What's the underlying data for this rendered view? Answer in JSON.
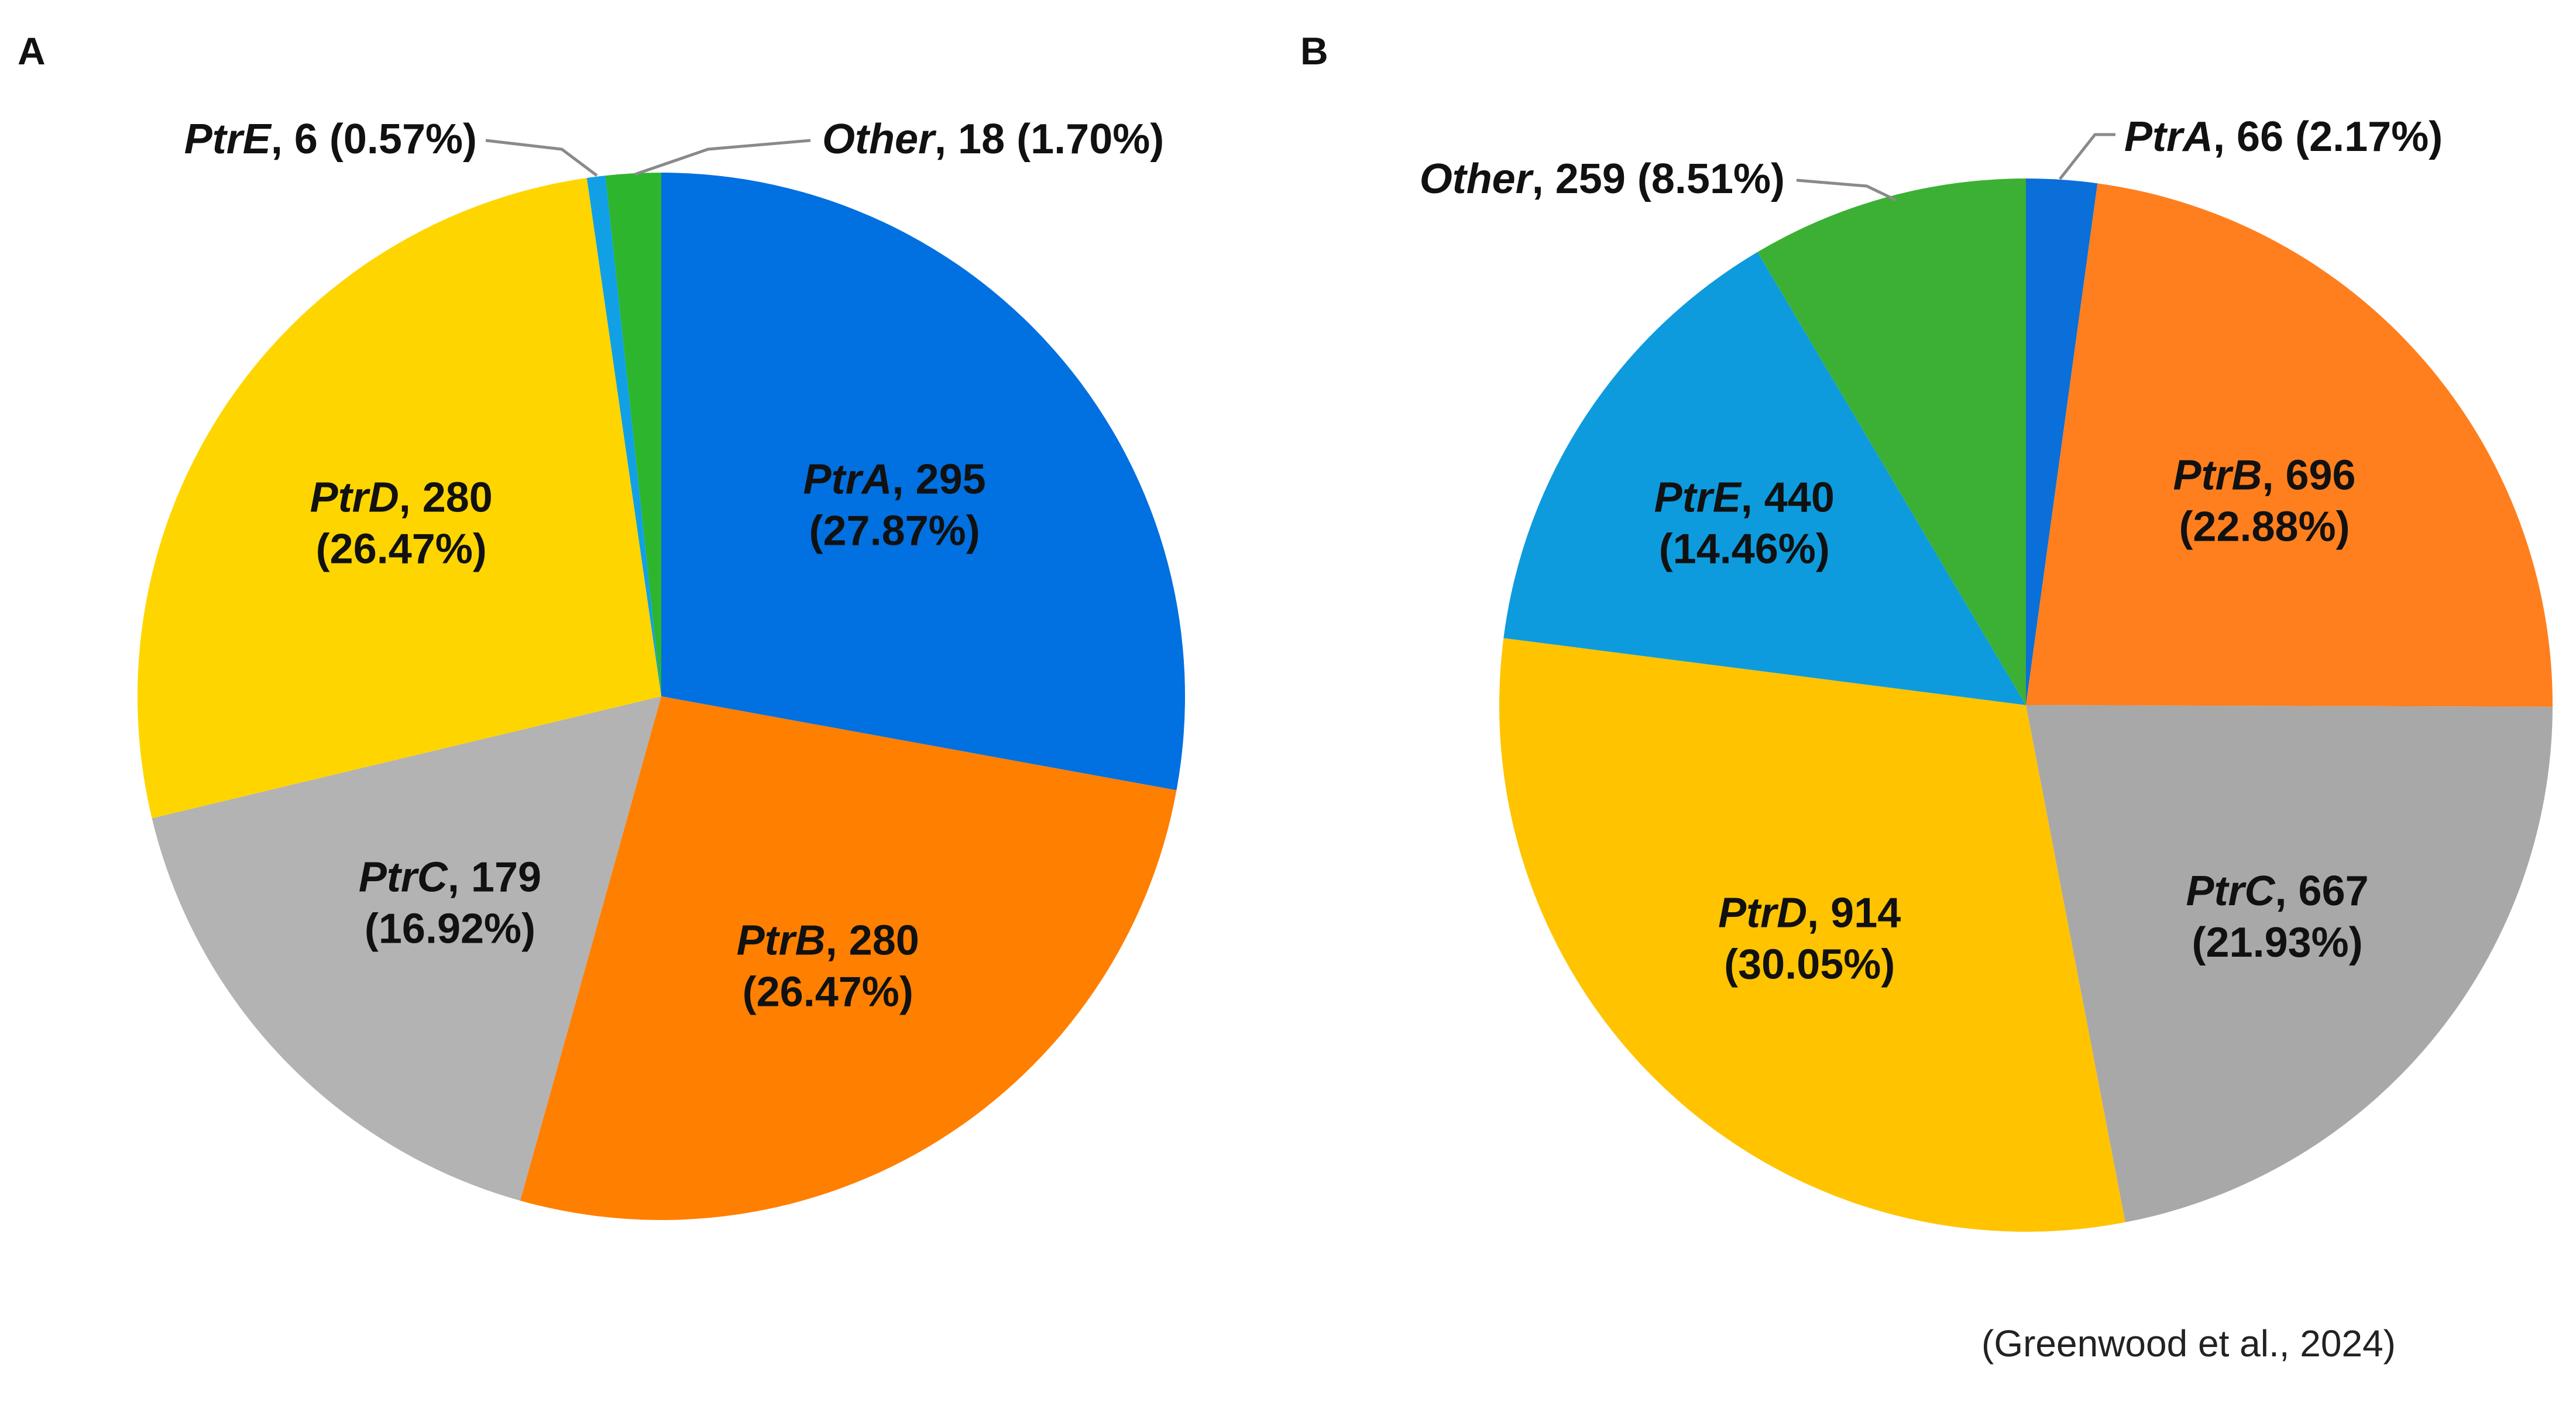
{
  "source_note": "(Greenwood et al., 2024)",
  "chart_data": [
    {
      "type": "pie",
      "panel": "A",
      "title": "",
      "start_angle_deg": 0,
      "direction": "clockwise",
      "slices": [
        {
          "name": "PtrA",
          "count": "295",
          "percent": "(27.87%)",
          "value": 27.87,
          "color": "#0170E0",
          "label_style": "inside"
        },
        {
          "name": "PtrB",
          "count": "280",
          "percent": "(26.47%)",
          "value": 26.47,
          "color": "#FF7F00",
          "label_style": "inside"
        },
        {
          "name": "PtrC",
          "count": "179",
          "percent": "(16.92%)",
          "value": 16.92,
          "color": "#B3B3B3",
          "label_style": "inside"
        },
        {
          "name": "PtrD",
          "count": "280",
          "percent": "(26.47%)",
          "value": 26.47,
          "color": "#FFD500",
          "label_style": "inside"
        },
        {
          "name": "PtrE",
          "count": "6",
          "percent": "(0.57%)",
          "value": 0.57,
          "color": "#11A0E6",
          "label_style": "callout-left"
        },
        {
          "name": "Other",
          "count": "18",
          "percent": "(1.70%)",
          "value": 1.7,
          "color": "#2DB52D",
          "label_style": "callout-right"
        }
      ]
    },
    {
      "type": "pie",
      "panel": "B",
      "title": "",
      "start_angle_deg": 0,
      "direction": "clockwise",
      "slices": [
        {
          "name": "PtrA",
          "count": "66",
          "percent": "(2.17%)",
          "value": 2.17,
          "color": "#0A6FD8",
          "label_style": "callout-right"
        },
        {
          "name": "PtrB",
          "count": "696",
          "percent": "(22.88%)",
          "value": 22.88,
          "color": "#FF7F1E",
          "label_style": "inside"
        },
        {
          "name": "PtrC",
          "count": "667",
          "percent": "(21.93%)",
          "value": 21.93,
          "color": "#A8A8A8",
          "label_style": "inside"
        },
        {
          "name": "PtrD",
          "count": "914",
          "percent": "(30.05%)",
          "value": 30.05,
          "color": "#FFC300",
          "label_style": "inside"
        },
        {
          "name": "PtrE",
          "count": "440",
          "percent": "(14.46%)",
          "value": 14.46,
          "color": "#0D9BDE",
          "label_style": "inside"
        },
        {
          "name": "Other",
          "count": "259",
          "percent": "(8.51%)",
          "value": 8.51,
          "color": "#3CB034",
          "label_style": "callout-left"
        }
      ]
    }
  ]
}
